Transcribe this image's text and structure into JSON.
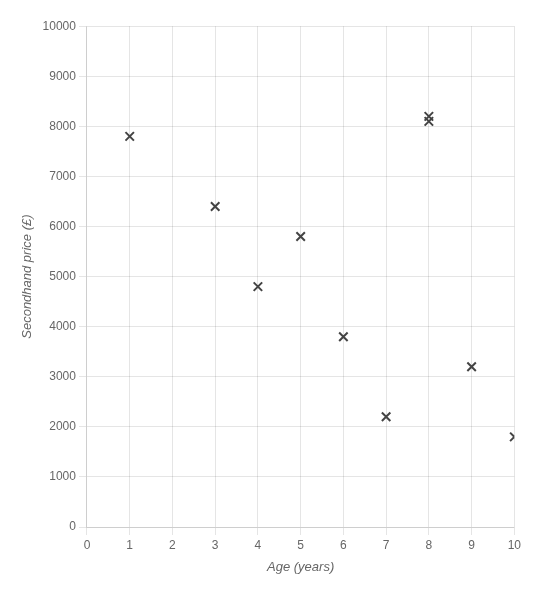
{
  "chart_data": {
    "type": "scatter",
    "x": [
      1,
      3,
      4,
      5,
      6,
      7,
      8,
      8,
      9,
      10
    ],
    "values": [
      7800,
      6400,
      4800,
      5800,
      3800,
      2200,
      8100,
      8200,
      3200,
      1800
    ],
    "xlabel": "Age (years)",
    "ylabel": "Secondhand price (£)",
    "xlim": [
      0,
      10
    ],
    "ylim": [
      0,
      10000
    ],
    "xticks": [
      0,
      1,
      2,
      3,
      4,
      5,
      6,
      7,
      8,
      9,
      10
    ],
    "yticks": [
      0,
      1000,
      2000,
      3000,
      4000,
      5000,
      6000,
      7000,
      8000,
      9000,
      10000
    ],
    "color": "#444444",
    "marker": "x",
    "grid": true
  }
}
